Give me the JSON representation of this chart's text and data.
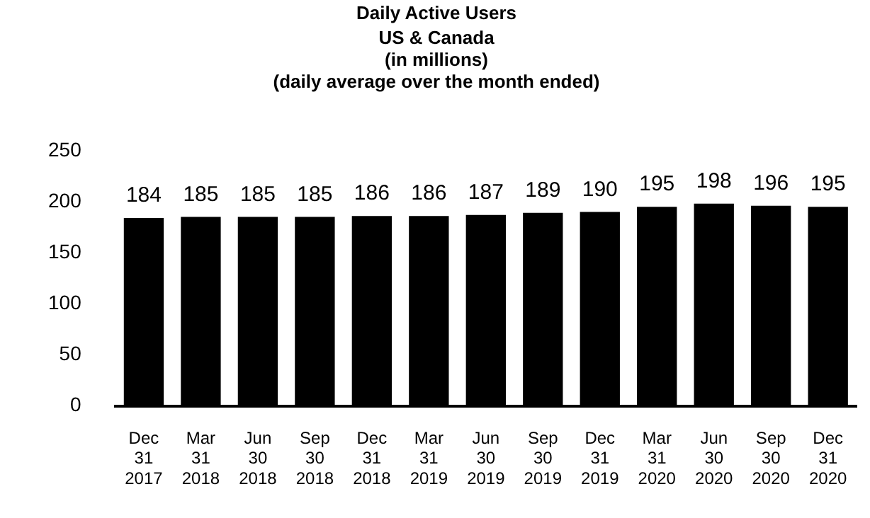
{
  "chart_data": {
    "type": "bar",
    "title": "Daily Active Users",
    "subtitle": "US & Canada\n(in millions)\n(daily average over the month ended)",
    "categories": [
      "Dec 31 2017",
      "Mar 31 2018",
      "Jun 30 2018",
      "Sep 30 2018",
      "Dec 31 2018",
      "Mar 31 2019",
      "Jun 30 2019",
      "Sep 30 2019",
      "Dec 31 2019",
      "Mar 31 2020",
      "Jun 30 2020",
      "Sep 30 2020",
      "Dec 31 2020"
    ],
    "values": [
      184,
      185,
      185,
      185,
      186,
      186,
      187,
      189,
      190,
      195,
      198,
      196,
      195
    ],
    "color": "#000000",
    "ylim": [
      0,
      250
    ],
    "yticks": [
      0,
      50,
      100,
      150,
      200,
      250
    ],
    "grid": false,
    "data_labels": true
  }
}
